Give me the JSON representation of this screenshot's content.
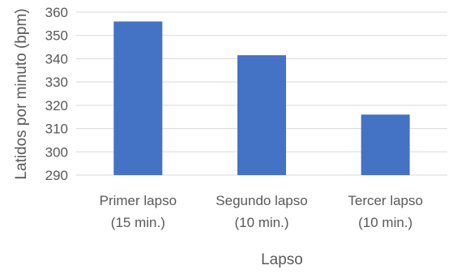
{
  "chart_data": {
    "type": "bar",
    "categories": [
      [
        "Primer lapso",
        "(15 min.)"
      ],
      [
        "Segundo lapso",
        "(10 min.)"
      ],
      [
        "Tercer lapso",
        "(10 min.)"
      ]
    ],
    "values": [
      356,
      341.5,
      316
    ],
    "xlabel": "Lapso",
    "ylabel": "Latidos por minuto (bpm)",
    "ylim": [
      290,
      360
    ],
    "yticks": [
      290,
      300,
      310,
      320,
      330,
      340,
      350,
      360
    ],
    "grid": true,
    "legend": "none",
    "colors": {
      "bar": "#4472C4",
      "grid": "#D9D9D9",
      "text": "#595959"
    }
  }
}
